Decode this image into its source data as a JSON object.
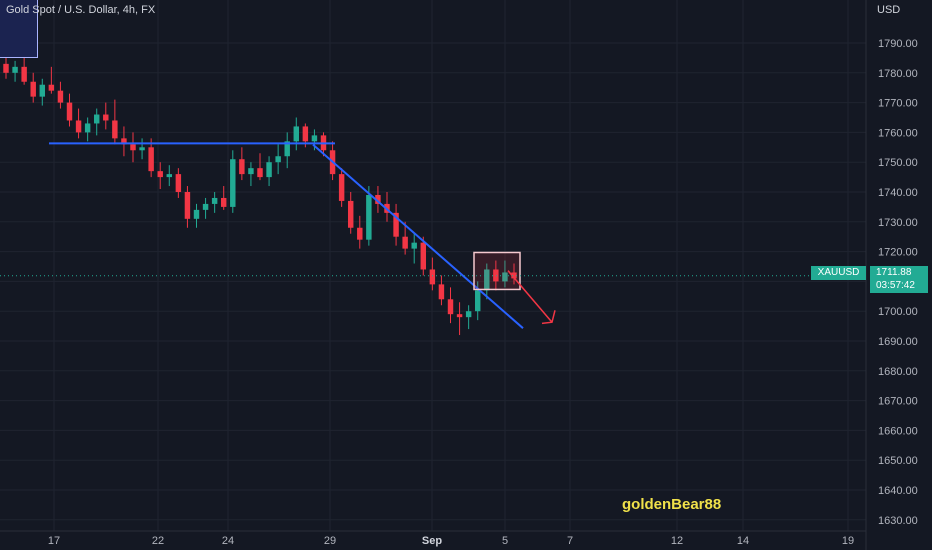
{
  "header": {
    "title": "Gold Spot / U.S. Dollar, 4h, FX"
  },
  "price_axis": {
    "currency": "USD"
  },
  "last_price": {
    "symbol": "XAUUSD",
    "price": "1711.88",
    "countdown": "03:57:42"
  },
  "watermark": "goldenBear88",
  "colors": {
    "background": "#141823",
    "up": "#22ab94",
    "down": "#f23645",
    "trendline": "#2962ff",
    "grid": "#1f2430"
  },
  "chart_data": {
    "type": "candlestick",
    "title": "Gold Spot / U.S. Dollar, 4h, FX",
    "ylabel": "USD",
    "ylim": [
      1626,
      1802
    ],
    "y_ticks": [
      "1790.00",
      "1780.00",
      "1770.00",
      "1760.00",
      "1750.00",
      "1740.00",
      "1730.00",
      "1720.00",
      "1710.00",
      "1700.00",
      "1690.00",
      "1680.00",
      "1670.00",
      "1660.00",
      "1650.00",
      "1640.00",
      "1630.00"
    ],
    "x_ticks": [
      "17",
      "22",
      "24",
      "29",
      "Sep",
      "5",
      "7",
      "12",
      "14",
      "19"
    ],
    "x_tick_bold": [
      "Sep"
    ],
    "ohlc": [
      [
        1783,
        1785,
        1778,
        1780
      ],
      [
        1780,
        1784,
        1777,
        1782
      ],
      [
        1782,
        1785,
        1776,
        1777
      ],
      [
        1777,
        1780,
        1770,
        1772
      ],
      [
        1772,
        1778,
        1769,
        1776
      ],
      [
        1776,
        1782,
        1773,
        1774
      ],
      [
        1774,
        1777,
        1768,
        1770
      ],
      [
        1770,
        1773,
        1762,
        1764
      ],
      [
        1764,
        1768,
        1758,
        1760
      ],
      [
        1760,
        1765,
        1757,
        1763
      ],
      [
        1763,
        1768,
        1759,
        1766
      ],
      [
        1766,
        1770,
        1761,
        1764
      ],
      [
        1764,
        1771,
        1756,
        1758
      ],
      [
        1758,
        1762,
        1752,
        1756
      ],
      [
        1756,
        1760,
        1750,
        1754
      ],
      [
        1754,
        1758,
        1751,
        1755
      ],
      [
        1755,
        1758,
        1745,
        1747
      ],
      [
        1747,
        1750,
        1741,
        1745
      ],
      [
        1745,
        1749,
        1742,
        1746
      ],
      [
        1746,
        1748,
        1738,
        1740
      ],
      [
        1740,
        1742,
        1728,
        1731
      ],
      [
        1731,
        1736,
        1728,
        1734
      ],
      [
        1734,
        1738,
        1731,
        1736
      ],
      [
        1736,
        1740,
        1733,
        1738
      ],
      [
        1738,
        1742,
        1734,
        1735
      ],
      [
        1735,
        1754,
        1733,
        1751
      ],
      [
        1751,
        1755,
        1744,
        1746
      ],
      [
        1746,
        1750,
        1742,
        1748
      ],
      [
        1748,
        1753,
        1744,
        1745
      ],
      [
        1745,
        1752,
        1742,
        1750
      ],
      [
        1750,
        1756,
        1746,
        1752
      ],
      [
        1752,
        1760,
        1748,
        1757
      ],
      [
        1757,
        1765,
        1754,
        1762
      ],
      [
        1762,
        1763,
        1755,
        1757
      ],
      [
        1757,
        1761,
        1754,
        1759
      ],
      [
        1759,
        1760,
        1752,
        1754
      ],
      [
        1754,
        1757,
        1744,
        1746
      ],
      [
        1746,
        1748,
        1735,
        1737
      ],
      [
        1737,
        1740,
        1726,
        1728
      ],
      [
        1728,
        1732,
        1721,
        1724
      ],
      [
        1724,
        1742,
        1722,
        1739
      ],
      [
        1739,
        1742,
        1733,
        1736
      ],
      [
        1736,
        1740,
        1730,
        1733
      ],
      [
        1733,
        1736,
        1722,
        1725
      ],
      [
        1725,
        1730,
        1719,
        1721
      ],
      [
        1721,
        1726,
        1716,
        1723
      ],
      [
        1723,
        1725,
        1712,
        1714
      ],
      [
        1714,
        1718,
        1707,
        1709
      ],
      [
        1709,
        1712,
        1702,
        1704
      ],
      [
        1704,
        1708,
        1696,
        1699
      ],
      [
        1699,
        1703,
        1692,
        1698
      ],
      [
        1698,
        1702,
        1694,
        1700
      ],
      [
        1700,
        1710,
        1697,
        1707
      ],
      [
        1707,
        1716,
        1704,
        1714
      ],
      [
        1714,
        1717,
        1707,
        1710
      ],
      [
        1710,
        1717,
        1708,
        1713
      ],
      [
        1713,
        1716,
        1709,
        1711
      ]
    ]
  }
}
